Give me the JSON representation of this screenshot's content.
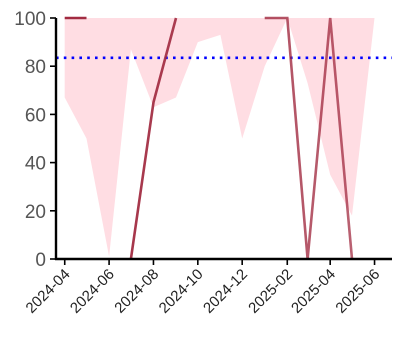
{
  "chart_data": {
    "type": "line",
    "title": "",
    "xlabel": "",
    "ylabel": "",
    "ylim": [
      0,
      100
    ],
    "xlim": [
      "2024-03-20",
      "2025-06-25"
    ],
    "yticks": [
      0,
      20,
      40,
      60,
      80,
      100
    ],
    "xticks": [
      "2024-04",
      "2024-06",
      "2024-08",
      "2024-10",
      "2024-12",
      "2025-02",
      "2025-04",
      "2025-06"
    ],
    "grid": false,
    "legend": "none",
    "reference_line": {
      "y": 83.5,
      "color": "#0000ff",
      "style": "dotted"
    },
    "band": {
      "color": "#ffdde3",
      "x": [
        "2024-04-01",
        "2024-05-01",
        "2024-06-01",
        "2024-07-01",
        "2024-08-01",
        "2024-09-01",
        "2024-10-01",
        "2024-11-01",
        "2024-12-01",
        "2025-01-01",
        "2025-02-01",
        "2025-03-01",
        "2025-04-01",
        "2025-05-01",
        "2025-06-01"
      ],
      "upper": [
        100,
        100,
        100,
        100,
        100,
        100,
        100,
        100,
        100,
        100,
        100,
        100,
        100,
        100,
        100
      ],
      "lower": [
        67,
        50,
        1,
        87,
        63,
        67,
        90,
        93,
        50,
        80,
        100,
        73,
        35,
        18,
        100
      ]
    },
    "series": [
      {
        "color": "#a0283e",
        "x": [
          "2024-04-01",
          "2024-05-01",
          "2024-06-01",
          "2024-07-01",
          "2024-08-01",
          "2024-09-01",
          "2024-10-01",
          "2024-11-01",
          "2024-12-01",
          "2025-01-01",
          "2025-02-01",
          "2025-03-01",
          "2025-04-01",
          "2025-05-01",
          "2025-06-01"
        ],
        "values": [
          100,
          100,
          null,
          0,
          65,
          100,
          null,
          null,
          null,
          100,
          100,
          0,
          100,
          0,
          null
        ]
      }
    ]
  }
}
